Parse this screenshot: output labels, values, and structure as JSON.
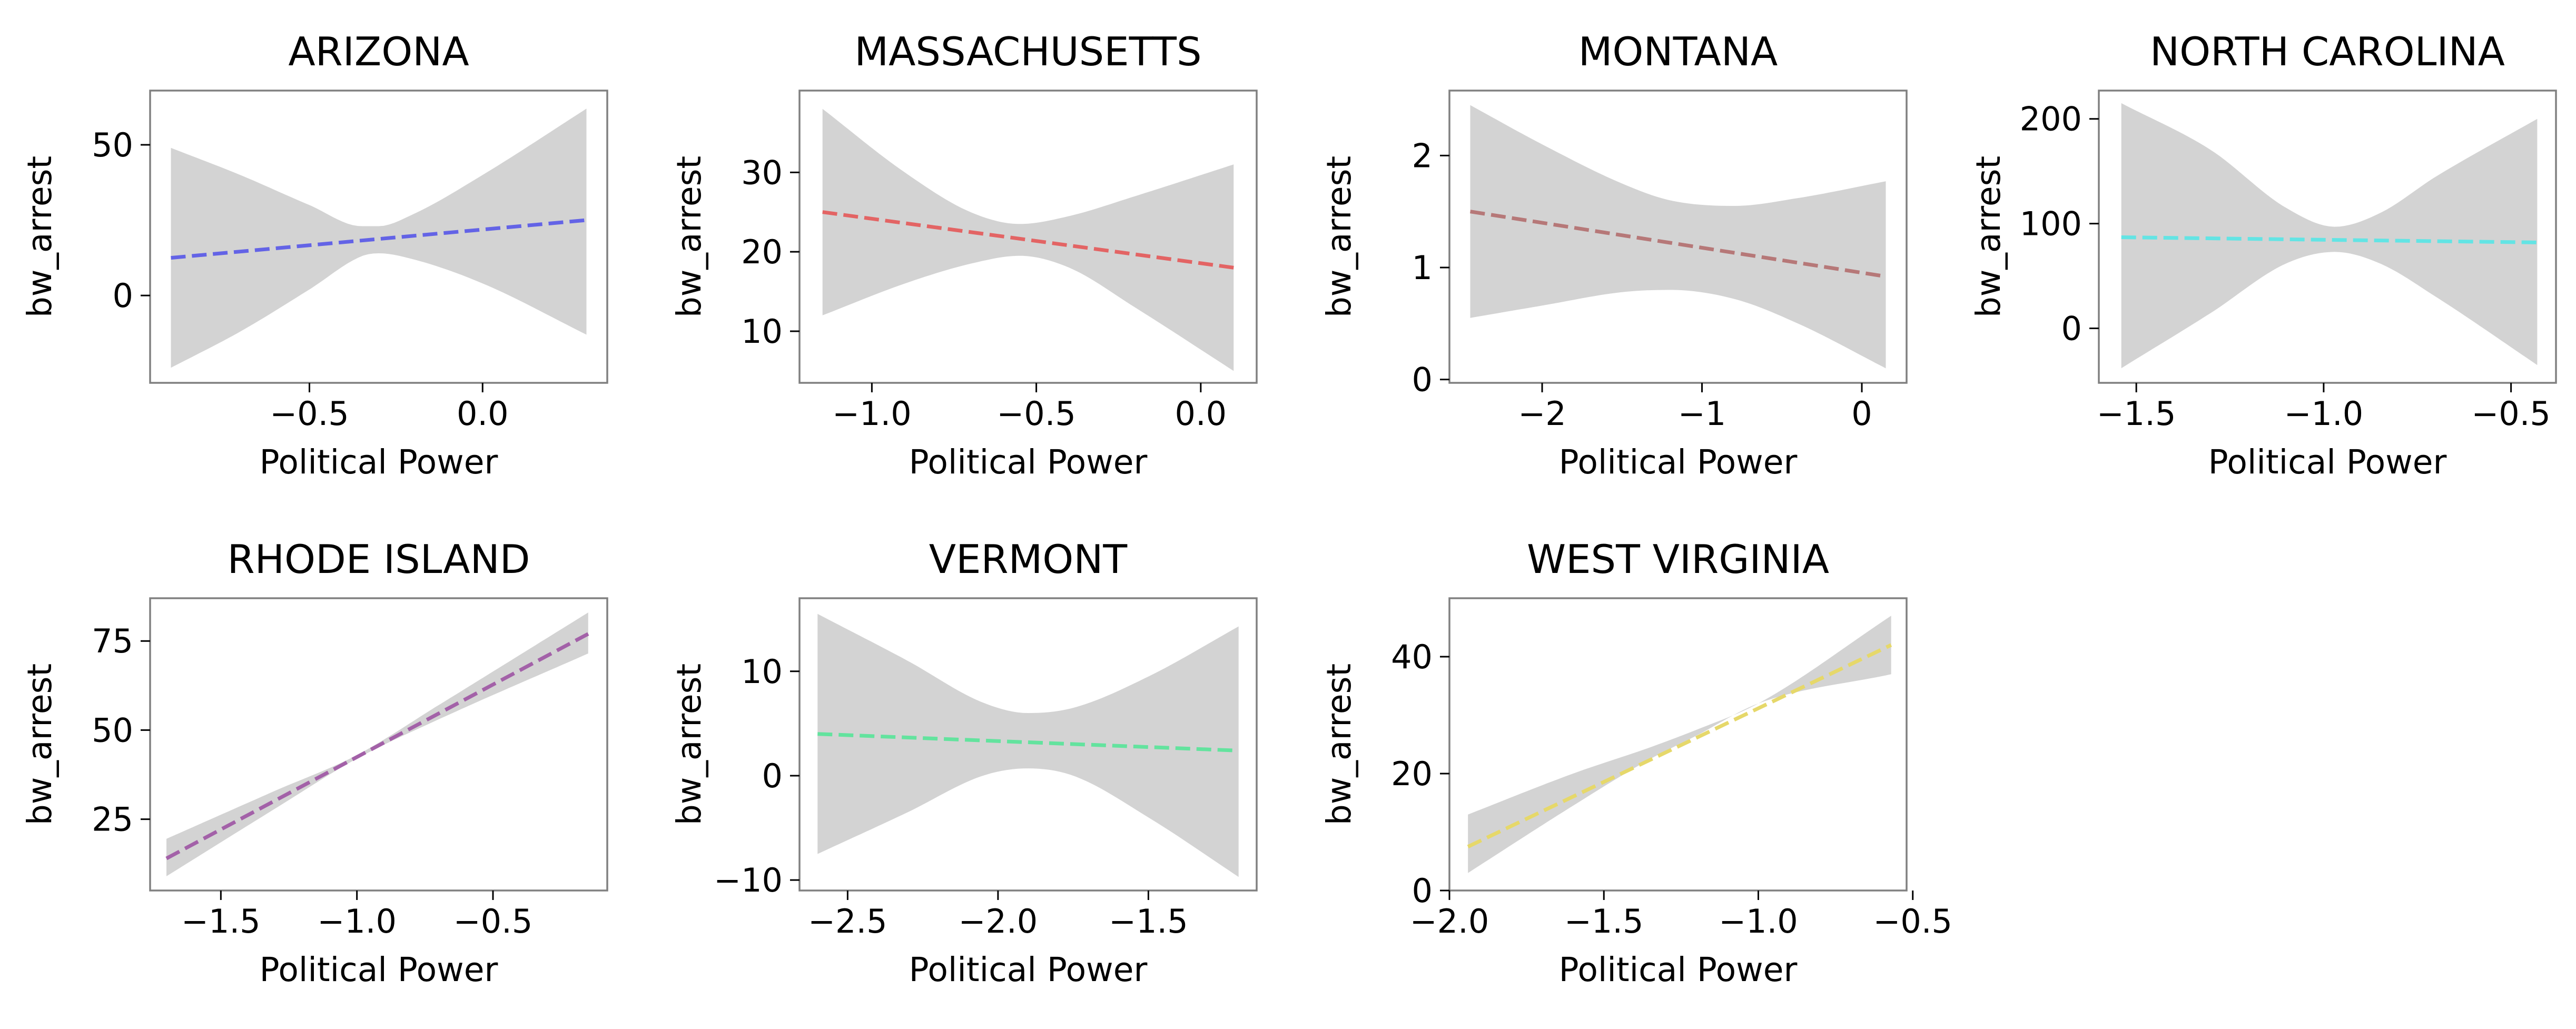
{
  "figure": {
    "background": "#ffffff",
    "band_color": "#d3d3d3",
    "frame_color": "#808080"
  },
  "chart_data": [
    {
      "type": "line",
      "title": "ARIZONA",
      "xlabel": "Political Power",
      "ylabel": "bw_arrest",
      "xlim": [
        -0.96,
        0.36
      ],
      "ylim": [
        -29,
        68
      ],
      "xticks": [
        -0.5,
        0.0
      ],
      "xtick_labels": [
        "−0.5",
        "0.0"
      ],
      "yticks": [
        0,
        50
      ],
      "ytick_labels": [
        "0",
        "50"
      ],
      "series": [
        {
          "color": "#6363e6",
          "style": "dashed",
          "x": [
            -0.9,
            0.3
          ],
          "y": [
            12.5,
            25.0
          ]
        }
      ],
      "band": {
        "x": [
          -0.9,
          -0.7,
          -0.5,
          -0.35,
          -0.3,
          -0.2,
          0.0,
          0.3
        ],
        "upper": [
          49,
          40,
          30,
          23,
          23,
          27,
          40,
          62
        ],
        "lower": [
          -24,
          -12,
          2,
          13,
          14,
          12,
          4,
          -13
        ]
      }
    },
    {
      "type": "line",
      "title": "MASSACHUSETTS",
      "xlabel": "Political Power",
      "ylabel": "bw_arrest",
      "xlim": [
        -1.22,
        0.17
      ],
      "ylim": [
        3.5,
        40.3
      ],
      "xticks": [
        -1.0,
        -0.5,
        0.0
      ],
      "xtick_labels": [
        "−1.0",
        "−0.5",
        "0.0"
      ],
      "yticks": [
        10,
        20,
        30
      ],
      "ytick_labels": [
        "10",
        "20",
        "30"
      ],
      "series": [
        {
          "color": "#e36464",
          "style": "dashed",
          "x": [
            -1.15,
            0.1
          ],
          "y": [
            25.0,
            18.0
          ]
        }
      ],
      "band": {
        "x": [
          -1.15,
          -0.9,
          -0.7,
          -0.55,
          -0.4,
          -0.2,
          0.1
        ],
        "upper": [
          38,
          30,
          25,
          23.5,
          24.5,
          27,
          31
        ],
        "lower": [
          12,
          16,
          18.5,
          19.5,
          18,
          13,
          5
        ]
      }
    },
    {
      "type": "line",
      "title": "MONTANA",
      "xlabel": "Political Power",
      "ylabel": "bw_arrest",
      "xlim": [
        -2.58,
        0.28
      ],
      "ylim": [
        -0.03,
        2.58
      ],
      "xticks": [
        -2,
        -1,
        0
      ],
      "xtick_labels": [
        "−2",
        "−1",
        "0"
      ],
      "yticks": [
        0,
        1,
        2
      ],
      "ytick_labels": [
        "0",
        "1",
        "2"
      ],
      "series": [
        {
          "color": "#b67878",
          "style": "dashed",
          "x": [
            -2.45,
            0.15
          ],
          "y": [
            1.5,
            0.92
          ]
        }
      ],
      "band": {
        "x": [
          -2.45,
          -2.0,
          -1.5,
          -1.2,
          -0.8,
          -0.4,
          0.15
        ],
        "upper": [
          2.45,
          2.1,
          1.75,
          1.6,
          1.55,
          1.62,
          1.77
        ],
        "lower": [
          0.55,
          0.66,
          0.78,
          0.8,
          0.72,
          0.5,
          0.1
        ]
      }
    },
    {
      "type": "line",
      "title": "NORTH CAROLINA",
      "xlabel": "Political Power",
      "ylabel": "bw_arrest",
      "xlim": [
        -1.6,
        -0.38
      ],
      "ylim": [
        -52,
        227
      ],
      "xticks": [
        -1.5,
        -1.0,
        -0.5
      ],
      "xtick_labels": [
        "−1.5",
        "−1.0",
        "−0.5"
      ],
      "yticks": [
        0,
        100,
        200
      ],
      "ytick_labels": [
        "0",
        "100",
        "200"
      ],
      "series": [
        {
          "color": "#63e4e4",
          "style": "dashed",
          "x": [
            -1.54,
            -0.43
          ],
          "y": [
            87,
            82
          ]
        }
      ],
      "band": {
        "x": [
          -1.54,
          -1.3,
          -1.1,
          -0.97,
          -0.85,
          -0.7,
          -0.43
        ],
        "upper": [
          215,
          170,
          115,
          97,
          110,
          145,
          200
        ],
        "lower": [
          -38,
          15,
          62,
          73,
          62,
          30,
          -35
        ]
      }
    },
    {
      "type": "line",
      "title": "RHODE ISLAND",
      "xlabel": "Political Power",
      "ylabel": "bw_arrest",
      "xlim": [
        -1.76,
        -0.08
      ],
      "ylim": [
        5,
        87
      ],
      "xticks": [
        -1.5,
        -1.0,
        -0.5
      ],
      "xtick_labels": [
        "−1.5",
        "−1.0",
        "−0.5"
      ],
      "yticks": [
        25,
        50,
        75
      ],
      "ytick_labels": [
        "25",
        "50",
        "75"
      ],
      "series": [
        {
          "color": "#a361a8",
          "style": "dashed",
          "x": [
            -1.7,
            -0.15
          ],
          "y": [
            14,
            77
          ]
        }
      ],
      "band": {
        "x": [
          -1.7,
          -1.3,
          -1.0,
          -0.7,
          -0.15
        ],
        "upper": [
          19.5,
          33,
          43,
          57,
          83
        ],
        "lower": [
          9,
          28,
          42,
          53,
          71.5
        ]
      }
    },
    {
      "type": "line",
      "title": "VERMONT",
      "xlabel": "Political Power",
      "ylabel": "bw_arrest",
      "xlim": [
        -2.66,
        -1.14
      ],
      "ylim": [
        -11,
        17
      ],
      "xticks": [
        -2.5,
        -2.0,
        -1.5
      ],
      "xtick_labels": [
        "−2.5",
        "−2.0",
        "−1.5"
      ],
      "yticks": [
        -10,
        0,
        10
      ],
      "ytick_labels": [
        "−10",
        "0",
        "10"
      ],
      "series": [
        {
          "color": "#63e39e",
          "style": "dashed",
          "x": [
            -2.6,
            -1.2
          ],
          "y": [
            4.0,
            2.4
          ]
        }
      ],
      "band": {
        "x": [
          -2.6,
          -2.3,
          -2.05,
          -1.9,
          -1.75,
          -1.5,
          -1.2
        ],
        "upper": [
          15.5,
          11,
          7,
          6,
          6.5,
          9.5,
          14.3
        ],
        "lower": [
          -7.5,
          -3.5,
          0,
          0.7,
          0,
          -4,
          -9.7
        ]
      }
    },
    {
      "type": "line",
      "title": "WEST VIRGINIA",
      "xlabel": "Political Power",
      "ylabel": "bw_arrest",
      "xlim": [
        -2.0,
        -0.52
      ],
      "ylim": [
        0,
        50
      ],
      "xticks": [
        -2.0,
        -1.5,
        -1.0,
        -0.5
      ],
      "xtick_labels": [
        "−2.0",
        "−1.5",
        "−1.0",
        "−0.5"
      ],
      "yticks": [
        0,
        20,
        40
      ],
      "ytick_labels": [
        "0",
        "20",
        "40"
      ],
      "series": [
        {
          "color": "#e6d86a",
          "style": "dashed",
          "x": [
            -1.94,
            -0.57
          ],
          "y": [
            7.5,
            42
          ]
        }
      ],
      "band": {
        "x": [
          -1.94,
          -1.6,
          -1.35,
          -1.2,
          -1.0,
          -0.57
        ],
        "upper": [
          13,
          20,
          24.5,
          27.5,
          32,
          47
        ],
        "lower": [
          3,
          14.5,
          22.5,
          26.5,
          32,
          37
        ]
      }
    }
  ]
}
